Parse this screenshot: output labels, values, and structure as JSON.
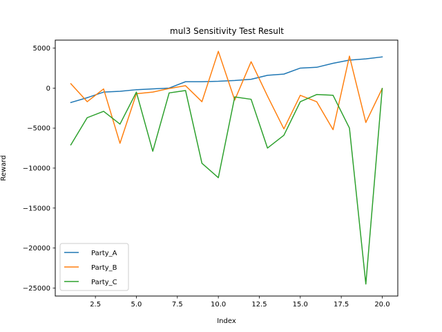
{
  "chart_data": {
    "type": "line",
    "title": "mul3 Sensitivity Test Result",
    "xlabel": "Index",
    "ylabel": "Reward",
    "xlim": [
      0.05,
      20.95
    ],
    "ylim": [
      -26000,
      6000
    ],
    "x": [
      1,
      2,
      3,
      4,
      5,
      6,
      7,
      8,
      9,
      10,
      11,
      12,
      13,
      14,
      15,
      16,
      17,
      18,
      19,
      20
    ],
    "xticks": [
      2.5,
      5.0,
      7.5,
      10.0,
      12.5,
      15.0,
      17.5,
      20.0
    ],
    "xtick_labels": [
      "2.5",
      "5.0",
      "7.5",
      "10.0",
      "12.5",
      "15.0",
      "17.5",
      "20.0"
    ],
    "yticks": [
      5000,
      0,
      -5000,
      -10000,
      -15000,
      -20000,
      -25000
    ],
    "ytick_labels": [
      "5000",
      "0",
      "−5000",
      "−10000",
      "−15000",
      "−20000",
      "−25000"
    ],
    "grid": false,
    "legend_position": "lower-left",
    "series": [
      {
        "name": "Party_A",
        "color": "#1f77b4",
        "values": [
          -1800,
          -1200,
          -500,
          -400,
          -200,
          -100,
          0,
          800,
          800,
          850,
          950,
          1100,
          1600,
          1750,
          2500,
          2600,
          3100,
          3500,
          3650,
          3900
        ]
      },
      {
        "name": "Party_B",
        "color": "#ff7f0e",
        "values": [
          550,
          -1700,
          -100,
          -6900,
          -700,
          -500,
          -50,
          300,
          -1700,
          4600,
          -1500,
          3300,
          -1000,
          -5100,
          -900,
          -1700,
          -5200,
          4000,
          -4300,
          -50
        ]
      },
      {
        "name": "Party_C",
        "color": "#2ca02c",
        "values": [
          -7100,
          -3700,
          -2900,
          -4500,
          -500,
          -7900,
          -600,
          -300,
          -9400,
          -11200,
          -1100,
          -1400,
          -7500,
          -5900,
          -1700,
          -800,
          -900,
          -5000,
          -24500,
          -50
        ]
      }
    ]
  }
}
